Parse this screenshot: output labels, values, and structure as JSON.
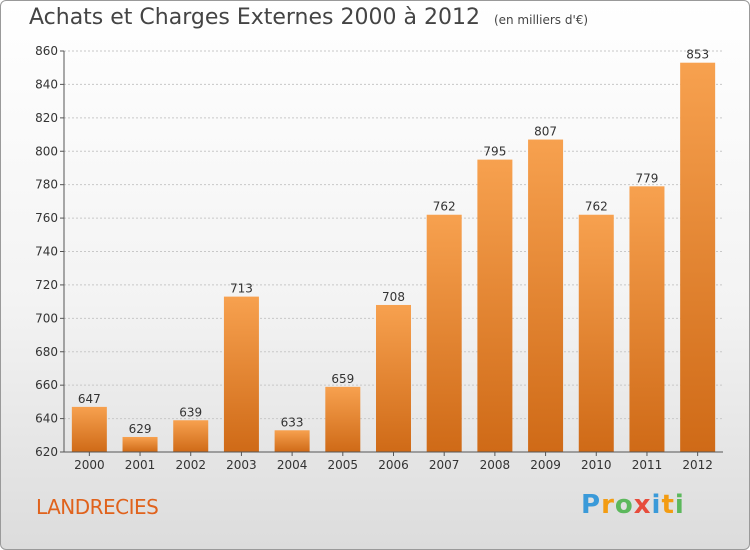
{
  "title": "Achats et Charges Externes 2000 à 2012",
  "subtitle": "(en milliers d'€)",
  "place": "LANDRECIES",
  "logo": {
    "letters": [
      "P",
      "r",
      "o",
      "x",
      "i",
      "t",
      "i"
    ],
    "colors": [
      "#3a9ad9",
      "#f39c12",
      "#5cb85c",
      "#e74c3c",
      "#3a9ad9",
      "#f39c12",
      "#5cb85c"
    ]
  },
  "colors": {
    "bar_top": "#f7a14f",
    "bar_bottom": "#cf6a17",
    "place": "#e0621c"
  },
  "chart_data": {
    "type": "bar",
    "title": "Achats et Charges Externes 2000 à 2012",
    "subtitle": "(en milliers d'€)",
    "categories": [
      "2000",
      "2001",
      "2002",
      "2003",
      "2004",
      "2005",
      "2006",
      "2007",
      "2008",
      "2009",
      "2010",
      "2011",
      "2012"
    ],
    "values": [
      647,
      629,
      639,
      713,
      633,
      659,
      708,
      762,
      795,
      807,
      762,
      779,
      853
    ],
    "ylim": [
      620,
      860
    ],
    "yticks": [
      620,
      640,
      660,
      680,
      700,
      720,
      740,
      760,
      780,
      800,
      820,
      840,
      860
    ],
    "grid": true,
    "data_labels": true
  }
}
